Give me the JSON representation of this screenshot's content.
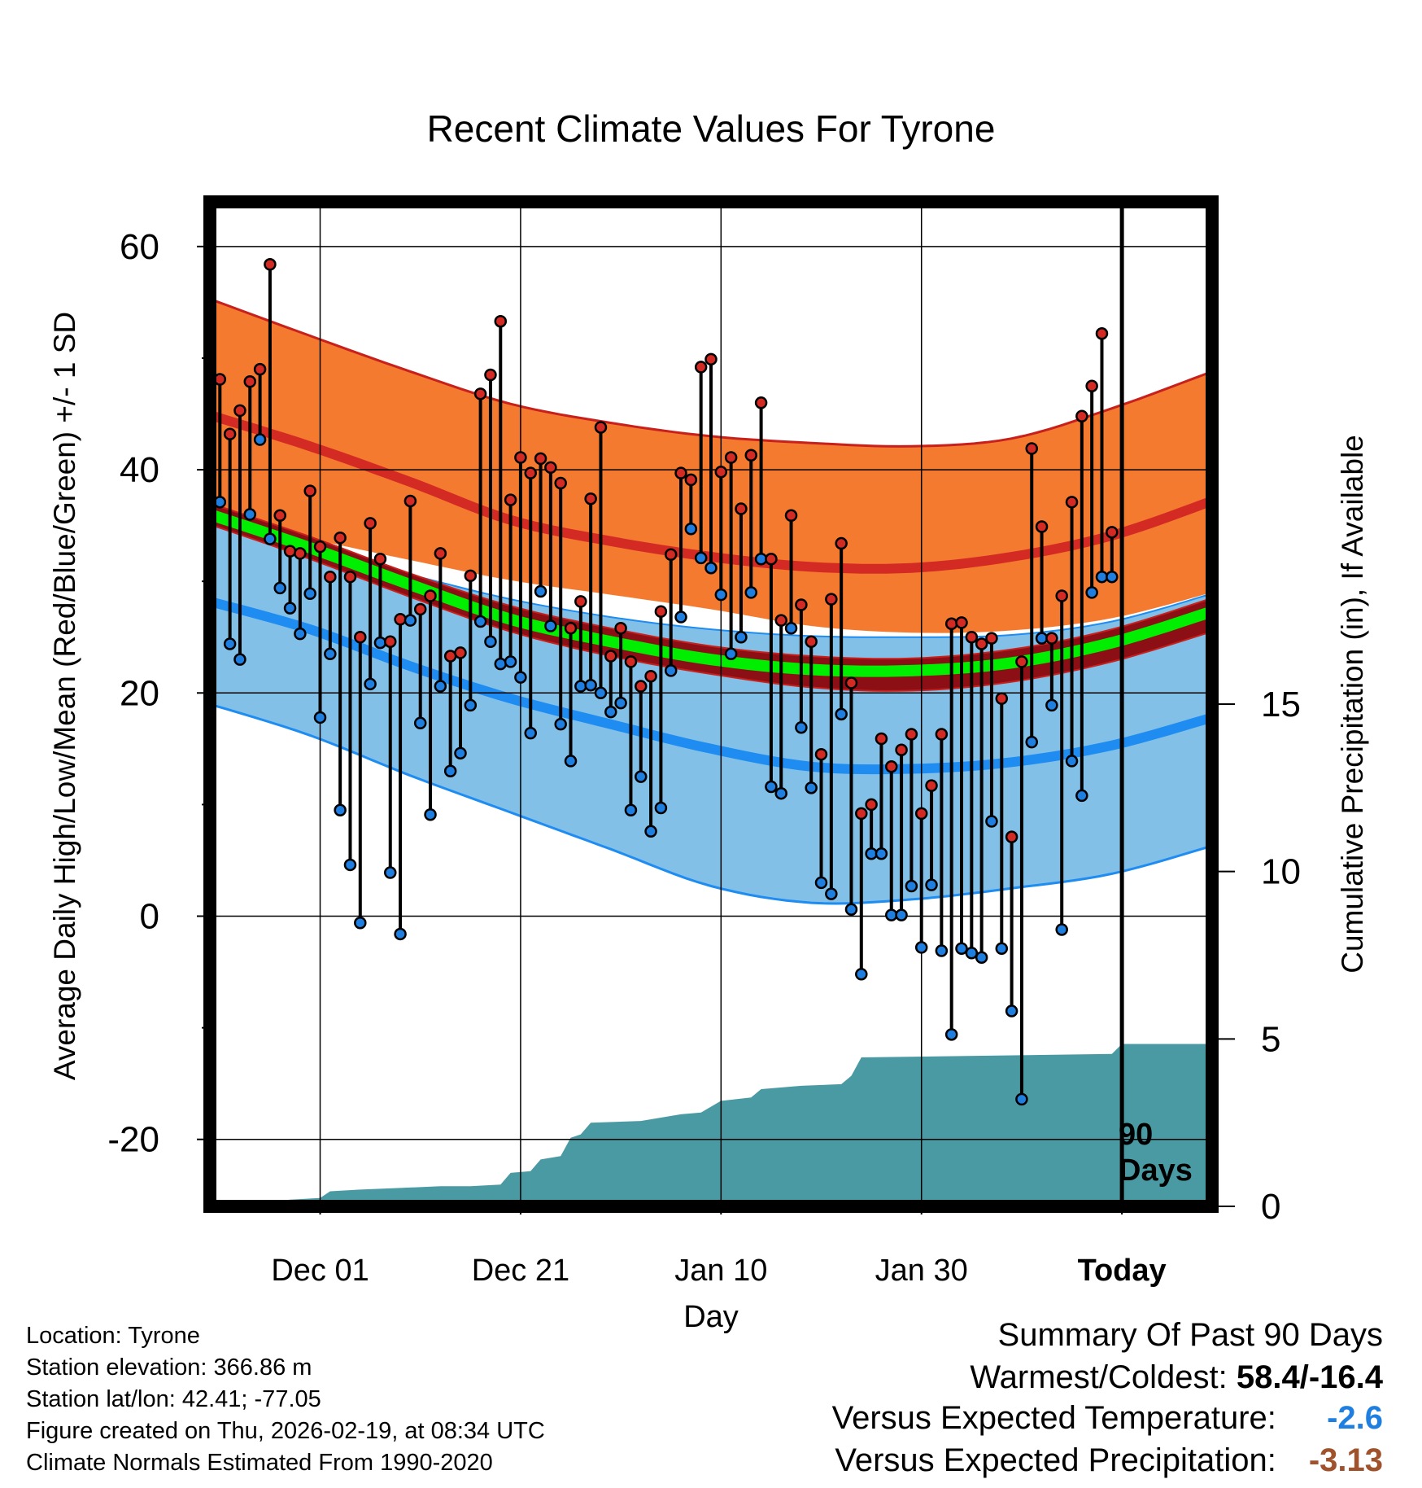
{
  "chart_data": {
    "type": "line",
    "title": "Recent Climate Values For Tyrone",
    "xlabel": "Day",
    "ylabel": "Average Daily High/Low/Mean (Red/Blue/Green) +/- 1 SD",
    "y2label": "Cumulative Precipitation (in), If Available",
    "ylim": [
      -26,
      64
    ],
    "y2lim": [
      0,
      30
    ],
    "yticks": [
      -20,
      0,
      20,
      40,
      60
    ],
    "ytick_labels": [
      "-20",
      "0",
      "20",
      "40",
      "60"
    ],
    "y2ticks": [
      0,
      5,
      10,
      15
    ],
    "y2tick_labels": [
      "0",
      "5",
      "10",
      "15"
    ],
    "x_day_range": [
      1,
      101
    ],
    "x_ticks": [
      {
        "day": 12,
        "label": "Dec 01"
      },
      {
        "day": 32,
        "label": "Dec 21"
      },
      {
        "day": 52,
        "label": "Jan 10"
      },
      {
        "day": 72,
        "label": "Jan 30"
      },
      {
        "day": 92,
        "label": "Today"
      }
    ],
    "today_day": 92,
    "today_annotation": "90 Days",
    "colors": {
      "high_band": "#f47a30",
      "high_mean": "#d42a24",
      "high_edge": "#c8201c",
      "low_band": "#82c0e8",
      "low_mean": "#1e8cf0",
      "mean_band": "#8b0f14",
      "mean_line": "#00ee00",
      "precip": "#4a9aa4",
      "high_dot": "#d42a24",
      "low_dot": "#1e7fe0"
    },
    "normals": {
      "days": [
        1,
        11,
        21,
        31,
        41,
        51,
        61,
        71,
        81,
        91,
        101
      ],
      "high_upper": [
        55.3,
        52.0,
        48.8,
        45.9,
        44.2,
        43.0,
        42.4,
        42.1,
        42.8,
        45.5,
        48.8
      ],
      "high_mean": [
        44.9,
        42.1,
        38.9,
        35.5,
        33.6,
        32.2,
        31.3,
        31.2,
        32.2,
        34.1,
        37.2
      ],
      "high_lower": [
        35.6,
        33.8,
        31.9,
        30.1,
        28.8,
        27.5,
        26.0,
        25.4,
        25.6,
        26.7,
        29.0
      ],
      "mean_upper": [
        37.0,
        34.0,
        30.7,
        27.8,
        25.8,
        24.2,
        23.3,
        23.1,
        23.9,
        25.7,
        28.5
      ],
      "mean_line": [
        36.0,
        33.0,
        29.7,
        26.6,
        24.6,
        23.0,
        22.1,
        22.0,
        22.7,
        24.5,
        27.3
      ],
      "mean_lower": [
        35.1,
        32.0,
        28.6,
        25.5,
        23.3,
        21.7,
        20.5,
        20.2,
        21.0,
        22.8,
        25.5
      ],
      "low_upper": [
        35.0,
        32.9,
        30.6,
        28.4,
        26.8,
        25.7,
        25.1,
        25.0,
        25.2,
        26.4,
        28.9
      ],
      "low_mean": [
        28.2,
        25.7,
        22.4,
        19.5,
        17.2,
        15.0,
        13.4,
        13.2,
        13.8,
        15.3,
        17.8
      ],
      "low_lower": [
        19.0,
        16.2,
        12.6,
        9.3,
        6.0,
        2.7,
        1.2,
        1.5,
        2.5,
        3.8,
        6.3
      ]
    },
    "series": [
      {
        "name": "Daily High",
        "values": [
          48.1,
          43.2,
          45.3,
          47.9,
          49.0,
          58.4,
          35.9,
          32.7,
          32.5,
          38.1,
          33.1,
          30.4,
          33.9,
          30.4,
          25.0,
          35.2,
          32.0,
          24.6,
          26.6,
          37.2,
          27.5,
          28.7,
          32.5,
          23.3,
          23.6,
          30.5,
          46.8,
          48.5,
          53.3,
          37.3,
          41.1,
          39.7,
          41.0,
          40.2,
          38.8,
          25.8,
          28.2,
          37.4,
          43.8,
          23.3,
          25.8,
          22.8,
          20.6,
          21.5,
          27.3,
          32.4,
          39.7,
          39.1,
          49.2,
          49.9,
          39.8,
          41.1,
          36.5,
          41.3,
          46.0,
          32.0,
          26.5,
          35.9,
          27.9,
          24.6,
          14.5,
          28.4,
          33.4,
          20.9,
          9.2,
          10.0,
          15.9,
          13.4,
          14.9,
          16.3,
          9.2,
          11.7,
          16.3,
          26.2,
          26.3,
          25.0,
          24.4,
          24.9,
          19.5,
          7.1,
          22.8,
          41.9,
          34.9,
          24.9,
          28.7,
          37.1,
          44.8,
          47.5,
          52.2,
          34.4
        ]
      },
      {
        "name": "Daily Low",
        "values": [
          37.1,
          24.4,
          23.0,
          36.0,
          42.7,
          33.8,
          29.4,
          27.6,
          25.3,
          28.9,
          17.8,
          23.5,
          9.5,
          4.6,
          -0.6,
          20.8,
          24.5,
          3.9,
          -1.6,
          26.5,
          17.3,
          9.1,
          20.6,
          13.0,
          14.6,
          18.9,
          26.4,
          24.6,
          22.6,
          22.8,
          21.4,
          16.4,
          29.1,
          26.0,
          17.2,
          13.9,
          20.6,
          20.7,
          20.0,
          18.3,
          19.1,
          9.5,
          12.5,
          7.6,
          9.7,
          22.0,
          26.8,
          34.7,
          32.1,
          31.2,
          28.8,
          23.5,
          25.0,
          29.0,
          32.0,
          11.6,
          11.0,
          25.8,
          16.9,
          11.5,
          3.0,
          2.0,
          18.1,
          0.6,
          -5.2,
          5.6,
          5.6,
          0.1,
          0.1,
          2.7,
          -2.8,
          2.8,
          -3.1,
          -10.6,
          -2.9,
          -3.3,
          -3.7,
          8.5,
          -2.9,
          -8.5,
          -16.4,
          15.6,
          24.9,
          18.9,
          -1.2,
          13.9,
          10.8,
          29.0,
          30.4,
          30.4
        ]
      }
    ],
    "precipitation": {
      "name": "Cumulative Precipitation (in)",
      "days": [
        1,
        5,
        6,
        9,
        12,
        13,
        16,
        20,
        24,
        27,
        30,
        31,
        33,
        34,
        36,
        37,
        38,
        39,
        44,
        48,
        50,
        52,
        55,
        56,
        60,
        64,
        65,
        66,
        91,
        92,
        101
      ],
      "values": [
        0,
        0,
        0.1,
        0.2,
        0.25,
        0.45,
        0.5,
        0.55,
        0.6,
        0.6,
        0.65,
        1.0,
        1.05,
        1.4,
        1.5,
        2.05,
        2.15,
        2.5,
        2.55,
        2.75,
        2.8,
        3.15,
        3.25,
        3.5,
        3.6,
        3.65,
        3.9,
        4.45,
        4.55,
        4.85,
        4.85
      ]
    }
  },
  "info": {
    "location": "Location: Tyrone",
    "elevation": "Station elevation: 366.86 m",
    "latlon": "Station lat/lon: 42.41; -77.05",
    "created": "Figure created on Thu, 2026-02-19, at 08:34 UTC",
    "normals": "Climate Normals Estimated From 1990-2020"
  },
  "summary": {
    "title": "Summary Of Past 90 Days",
    "warmest_label": "Warmest/Coldest:",
    "warmest_value": "58.4/-16.4",
    "temp_label": "Versus Expected Temperature:",
    "temp_value": "-2.6",
    "temp_color": "#1e7fe0",
    "precip_label": "Versus Expected Precipitation:",
    "precip_value": "-3.13",
    "precip_color": "#a0522d"
  }
}
